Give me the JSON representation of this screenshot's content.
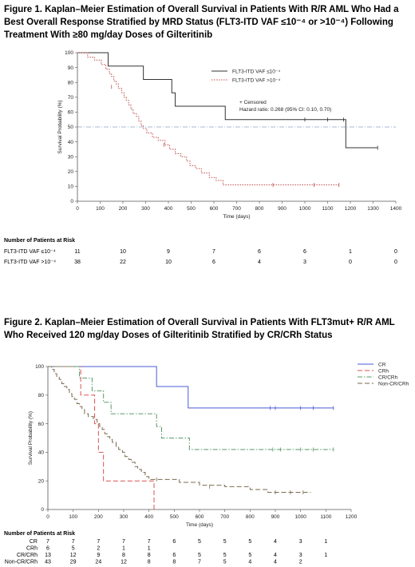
{
  "figures": [
    {
      "title": "Figure 1.  Kaplan–Meier Estimation of Overall Survival in Patients With R/R AML Who Had a Best Overall Response Stratified by MRD Status (FLT3-ITD VAF ≤10⁻⁴ or >10⁻⁴) Following Treatment With ≥80 mg/day Doses of Gilteritinib"
    },
    {
      "title": "Figure 2. Kaplan–Meier Estimation of Overall Survival in Patients With FLT3mut+ R/R AML Who Received 120 mg/day Doses of Gilteritinib Stratified by CR/CRh Status"
    }
  ],
  "chart_data": [
    {
      "type": "line",
      "xlabel": "Time (days)",
      "ylabel": "Survival Probability (%)",
      "xlim": [
        0,
        1400
      ],
      "ylim": [
        0,
        100
      ],
      "xticks": [
        0,
        100,
        200,
        300,
        400,
        500,
        600,
        700,
        800,
        900,
        1000,
        1100,
        1200,
        1300,
        1400
      ],
      "yticks": [
        0,
        10,
        20,
        30,
        40,
        50,
        60,
        70,
        80,
        90,
        100
      ],
      "reference_line_y": 50,
      "legend_position": "top-right",
      "annotations": [
        "+ Censored",
        "Hazard ratio: 0.268 (95% CI: 0.10, 0.70)"
      ],
      "series": [
        {
          "name": "FLT3-ITD VAF ≤10⁻⁴",
          "color": "#333333",
          "style": "solid",
          "steps": [
            [
              0,
              100
            ],
            [
              135,
              91
            ],
            [
              290,
              82
            ],
            [
              415,
              73
            ],
            [
              430,
              64
            ],
            [
              650,
              55
            ],
            [
              1180,
              36
            ],
            [
              1320,
              36
            ]
          ],
          "censored": [
            [
              1000,
              55
            ],
            [
              1100,
              55
            ],
            [
              1170,
              55
            ],
            [
              1320,
              36
            ]
          ]
        },
        {
          "name": "FLT3-ITD VAF >10⁻⁴",
          "color": "#c0504d",
          "style": "dotted",
          "steps": [
            [
              0,
              100
            ],
            [
              45,
              97
            ],
            [
              75,
              95
            ],
            [
              105,
              92
            ],
            [
              125,
              89
            ],
            [
              140,
              86
            ],
            [
              150,
              84
            ],
            [
              160,
              81
            ],
            [
              170,
              79
            ],
            [
              180,
              76
            ],
            [
              195,
              73
            ],
            [
              205,
              70
            ],
            [
              215,
              68
            ],
            [
              225,
              65
            ],
            [
              235,
              62
            ],
            [
              245,
              59
            ],
            [
              260,
              57
            ],
            [
              270,
              54
            ],
            [
              280,
              51
            ],
            [
              290,
              49
            ],
            [
              305,
              46
            ],
            [
              330,
              43
            ],
            [
              355,
              41
            ],
            [
              385,
              38
            ],
            [
              405,
              35
            ],
            [
              430,
              32
            ],
            [
              455,
              30
            ],
            [
              480,
              27
            ],
            [
              495,
              24
            ],
            [
              520,
              22
            ],
            [
              545,
              19
            ],
            [
              580,
              16
            ],
            [
              610,
              14
            ],
            [
              640,
              11
            ],
            [
              1155,
              11
            ]
          ],
          "censored": [
            [
              150,
              77
            ],
            [
              380,
              38
            ],
            [
              860,
              11
            ],
            [
              1040,
              11
            ],
            [
              1150,
              11
            ]
          ]
        }
      ],
      "risk_table": {
        "title": "Number of Patients at Risk",
        "times": [
          0,
          200,
          400,
          600,
          800,
          1000,
          1200,
          1400
        ],
        "rows": [
          {
            "label": "FLT3-ITD VAF ≤10⁻⁴",
            "values": [
              "11",
              "10",
              "9",
              "7",
              "6",
              "6",
              "1",
              "0"
            ]
          },
          {
            "label": "FLT3-ITD VAF >10⁻⁴",
            "values": [
              "38",
              "22",
              "10",
              "6",
              "4",
              "3",
              "0",
              "0"
            ]
          }
        ]
      }
    },
    {
      "type": "line",
      "xlabel": "Time (days)",
      "ylabel": "Survival Probability (%)",
      "xlim": [
        0,
        1200
      ],
      "ylim": [
        0,
        100
      ],
      "xticks": [
        0,
        100,
        200,
        300,
        400,
        500,
        600,
        700,
        800,
        900,
        1000,
        1100,
        1200
      ],
      "yticks": [
        0,
        20,
        40,
        60,
        80,
        100
      ],
      "legend_position": "top-right",
      "series": [
        {
          "name": "CR",
          "color": "#4a5bd4",
          "style": "solid",
          "steps": [
            [
              0,
              100
            ],
            [
              430,
              100
            ],
            [
              430,
              86
            ],
            [
              555,
              86
            ],
            [
              555,
              71
            ],
            [
              1130,
              71
            ]
          ],
          "censored": [
            [
              880,
              71
            ],
            [
              900,
              71
            ],
            [
              1000,
              71
            ],
            [
              1050,
              71
            ],
            [
              1130,
              71
            ]
          ]
        },
        {
          "name": "CRh",
          "color": "#d9534f",
          "style": "dashed",
          "steps": [
            [
              0,
              100
            ],
            [
              110,
              100
            ],
            [
              130,
              80
            ],
            [
              170,
              80
            ],
            [
              185,
              60
            ],
            [
              200,
              40
            ],
            [
              220,
              20
            ],
            [
              410,
              20
            ],
            [
              420,
              0
            ]
          ],
          "censored": []
        },
        {
          "name": "CR/CRh",
          "color": "#5a9a6a",
          "style": "dashdot",
          "steps": [
            [
              0,
              100
            ],
            [
              100,
              100
            ],
            [
              125,
              92
            ],
            [
              175,
              83
            ],
            [
              220,
              75
            ],
            [
              250,
              67
            ],
            [
              420,
              67
            ],
            [
              430,
              58
            ],
            [
              450,
              50
            ],
            [
              560,
              50
            ],
            [
              560,
              42
            ],
            [
              1130,
              42
            ]
          ],
          "censored": [
            [
              890,
              42
            ],
            [
              920,
              42
            ],
            [
              1000,
              42
            ],
            [
              1050,
              42
            ],
            [
              1130,
              42
            ]
          ]
        },
        {
          "name": "Non-CR/CRh",
          "color": "#7a6a4e",
          "style": "dashed",
          "steps": [
            [
              0,
              100
            ],
            [
              15,
              98
            ],
            [
              25,
              95
            ],
            [
              35,
              93
            ],
            [
              45,
              91
            ],
            [
              55,
              88
            ],
            [
              65,
              86
            ],
            [
              75,
              84
            ],
            [
              85,
              81
            ],
            [
              95,
              79
            ],
            [
              105,
              77
            ],
            [
              115,
              74
            ],
            [
              125,
              72
            ],
            [
              135,
              70
            ],
            [
              145,
              67
            ],
            [
              160,
              65
            ],
            [
              180,
              63
            ],
            [
              195,
              60
            ],
            [
              205,
              58
            ],
            [
              215,
              56
            ],
            [
              225,
              53
            ],
            [
              235,
              51
            ],
            [
              245,
              49
            ],
            [
              255,
              47
            ],
            [
              270,
              44
            ],
            [
              280,
              42
            ],
            [
              295,
              40
            ],
            [
              305,
              37
            ],
            [
              320,
              35
            ],
            [
              330,
              33
            ],
            [
              345,
              30
            ],
            [
              355,
              28
            ],
            [
              370,
              26
            ],
            [
              385,
              23
            ],
            [
              400,
              21
            ],
            [
              500,
              21
            ],
            [
              520,
              19
            ],
            [
              600,
              17
            ],
            [
              700,
              16
            ],
            [
              800,
              14
            ],
            [
              870,
              12
            ],
            [
              1040,
              12
            ]
          ],
          "censored": [
            [
              430,
              21
            ],
            [
              640,
              16
            ],
            [
              900,
              12
            ],
            [
              960,
              12
            ],
            [
              1010,
              12
            ]
          ]
        }
      ],
      "risk_table": {
        "title": "Number of Patients at Risk",
        "times": [
          0,
          100,
          200,
          300,
          400,
          500,
          600,
          700,
          800,
          900,
          1000,
          1100
        ],
        "rows": [
          {
            "label": "CR",
            "values": [
              "7",
              "7",
              "7",
              "7",
              "7",
              "6",
              "5",
              "5",
              "5",
              "4",
              "3",
              "1"
            ]
          },
          {
            "label": "CRh",
            "values": [
              "6",
              "5",
              "2",
              "1",
              "1",
              "",
              "",
              "",
              "",
              "",
              "",
              ""
            ]
          },
          {
            "label": "CR/CRh",
            "values": [
              "13",
              "12",
              "9",
              "8",
              "8",
              "6",
              "5",
              "5",
              "5",
              "4",
              "3",
              "1"
            ]
          },
          {
            "label": "Non-CR/CRh",
            "values": [
              "43",
              "29",
              "24",
              "12",
              "8",
              "8",
              "7",
              "5",
              "4",
              "4",
              "2",
              ""
            ]
          }
        ]
      }
    }
  ]
}
